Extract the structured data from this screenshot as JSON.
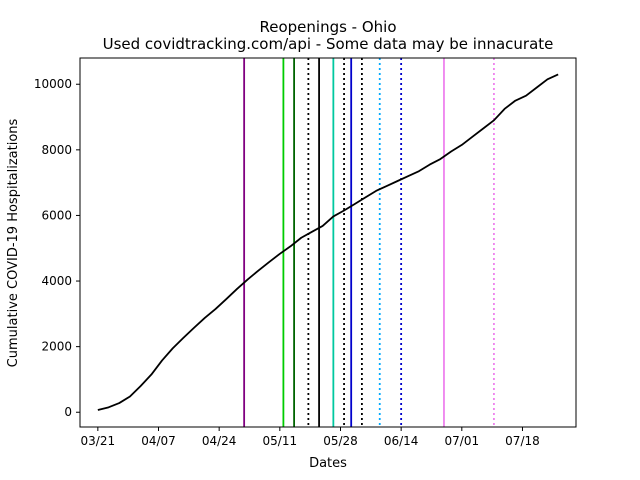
{
  "chart_data": {
    "type": "line",
    "title_line1": "Reopenings - Ohio",
    "title_line2": "Used covidtracking.com/api - Some data may be innacurate",
    "xlabel": "Dates",
    "ylabel": "Cumulative COVID-19 Hospitalizations",
    "x_ticks": [
      "03/21",
      "04/07",
      "04/24",
      "05/11",
      "05/28",
      "06/14",
      "07/01",
      "07/18"
    ],
    "y_ticks": [
      "0",
      "2000",
      "4000",
      "6000",
      "8000",
      "10000"
    ],
    "y_tick_values": [
      0,
      2000,
      4000,
      6000,
      8000,
      10000
    ],
    "ylim": [
      -450,
      10800
    ],
    "xlim": [
      "2020-03-16",
      "2020-08-02"
    ],
    "series": [
      {
        "color": "#000000",
        "x": [
          "2020-03-21",
          "2020-03-24",
          "2020-03-27",
          "2020-03-30",
          "2020-04-02",
          "2020-04-05",
          "2020-04-08",
          "2020-04-11",
          "2020-04-14",
          "2020-04-17",
          "2020-04-20",
          "2020-04-23",
          "2020-04-26",
          "2020-04-29",
          "2020-05-02",
          "2020-05-05",
          "2020-05-08",
          "2020-05-11",
          "2020-05-14",
          "2020-05-17",
          "2020-05-20",
          "2020-05-23",
          "2020-05-26",
          "2020-05-29",
          "2020-06-01",
          "2020-06-04",
          "2020-06-07",
          "2020-06-10",
          "2020-06-13",
          "2020-06-16",
          "2020-06-19",
          "2020-06-22",
          "2020-06-25",
          "2020-06-28",
          "2020-07-01",
          "2020-07-04",
          "2020-07-07",
          "2020-07-10",
          "2020-07-13",
          "2020-07-16",
          "2020-07-19",
          "2020-07-22",
          "2020-07-25",
          "2020-07-28"
        ],
        "values": [
          70,
          150,
          280,
          480,
          800,
          1150,
          1580,
          1950,
          2270,
          2580,
          2880,
          3150,
          3450,
          3760,
          4050,
          4320,
          4580,
          4830,
          5060,
          5320,
          5500,
          5680,
          5970,
          6150,
          6350,
          6550,
          6750,
          6900,
          7050,
          7200,
          7350,
          7550,
          7720,
          7950,
          8150,
          8400,
          8650,
          8900,
          9250,
          9500,
          9650,
          9900,
          10150,
          10300
        ]
      }
    ],
    "reopening_lines": [
      {
        "date": "2020-05-01",
        "color": "#800080",
        "style": "solid"
      },
      {
        "date": "2020-05-12",
        "color": "#00cc00",
        "style": "solid"
      },
      {
        "date": "2020-05-15",
        "color": "#006400",
        "style": "solid"
      },
      {
        "date": "2020-05-19",
        "color": "#000000",
        "style": "dotted"
      },
      {
        "date": "2020-05-22",
        "color": "#000000",
        "style": "solid"
      },
      {
        "date": "2020-05-26",
        "color": "#00c8a0",
        "style": "solid"
      },
      {
        "date": "2020-05-29",
        "color": "#000000",
        "style": "dotted"
      },
      {
        "date": "2020-05-31",
        "color": "#0000cc",
        "style": "solid"
      },
      {
        "date": "2020-06-03",
        "color": "#000000",
        "style": "dotted"
      },
      {
        "date": "2020-06-08",
        "color": "#00aaff",
        "style": "dotted"
      },
      {
        "date": "2020-06-14",
        "color": "#0000cc",
        "style": "dotted"
      },
      {
        "date": "2020-06-26",
        "color": "#ee82ee",
        "style": "solid"
      },
      {
        "date": "2020-07-10",
        "color": "#ee82ee",
        "style": "dotted"
      }
    ],
    "grid": false,
    "legend": "none"
  }
}
